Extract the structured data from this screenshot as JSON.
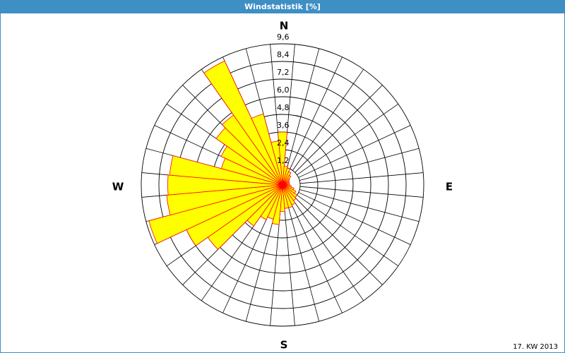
{
  "chart_data": {
    "type": "wind_rose",
    "title": "Windstatistik [%]",
    "values": [
      3.6,
      1.3,
      1.2,
      1.0,
      0.8,
      0.6,
      0.5,
      0.5,
      0.4,
      0.5,
      0.6,
      0.8,
      1.0,
      1.2,
      1.3,
      1.5,
      1.6,
      1.6,
      1.8,
      2.7,
      2.4,
      2.6,
      3.4,
      6.2,
      7.2,
      9.4,
      7.9,
      7.8,
      7.7,
      4.3,
      4.6,
      5.5,
      5.8,
      9.3,
      5.0,
      3.0
    ],
    "color": "#ffff00",
    "edge_color": "#ff0000",
    "ylim": [
      0,
      9.6
    ],
    "yticks": [
      {
        "value": 1.2,
        "label": "1,2"
      },
      {
        "value": 2.4,
        "label": "2,4"
      },
      {
        "value": 3.6,
        "label": "3,6"
      },
      {
        "value": 4.8,
        "label": "4,8"
      },
      {
        "value": 6.0,
        "label": "6,0"
      },
      {
        "value": 7.2,
        "label": "7,2"
      },
      {
        "value": 8.4,
        "label": "8,4"
      },
      {
        "value": 9.6,
        "label": "9,6"
      }
    ],
    "directions": [
      "N",
      "E",
      "S",
      "W"
    ],
    "footnote": "17. KW 2013"
  }
}
